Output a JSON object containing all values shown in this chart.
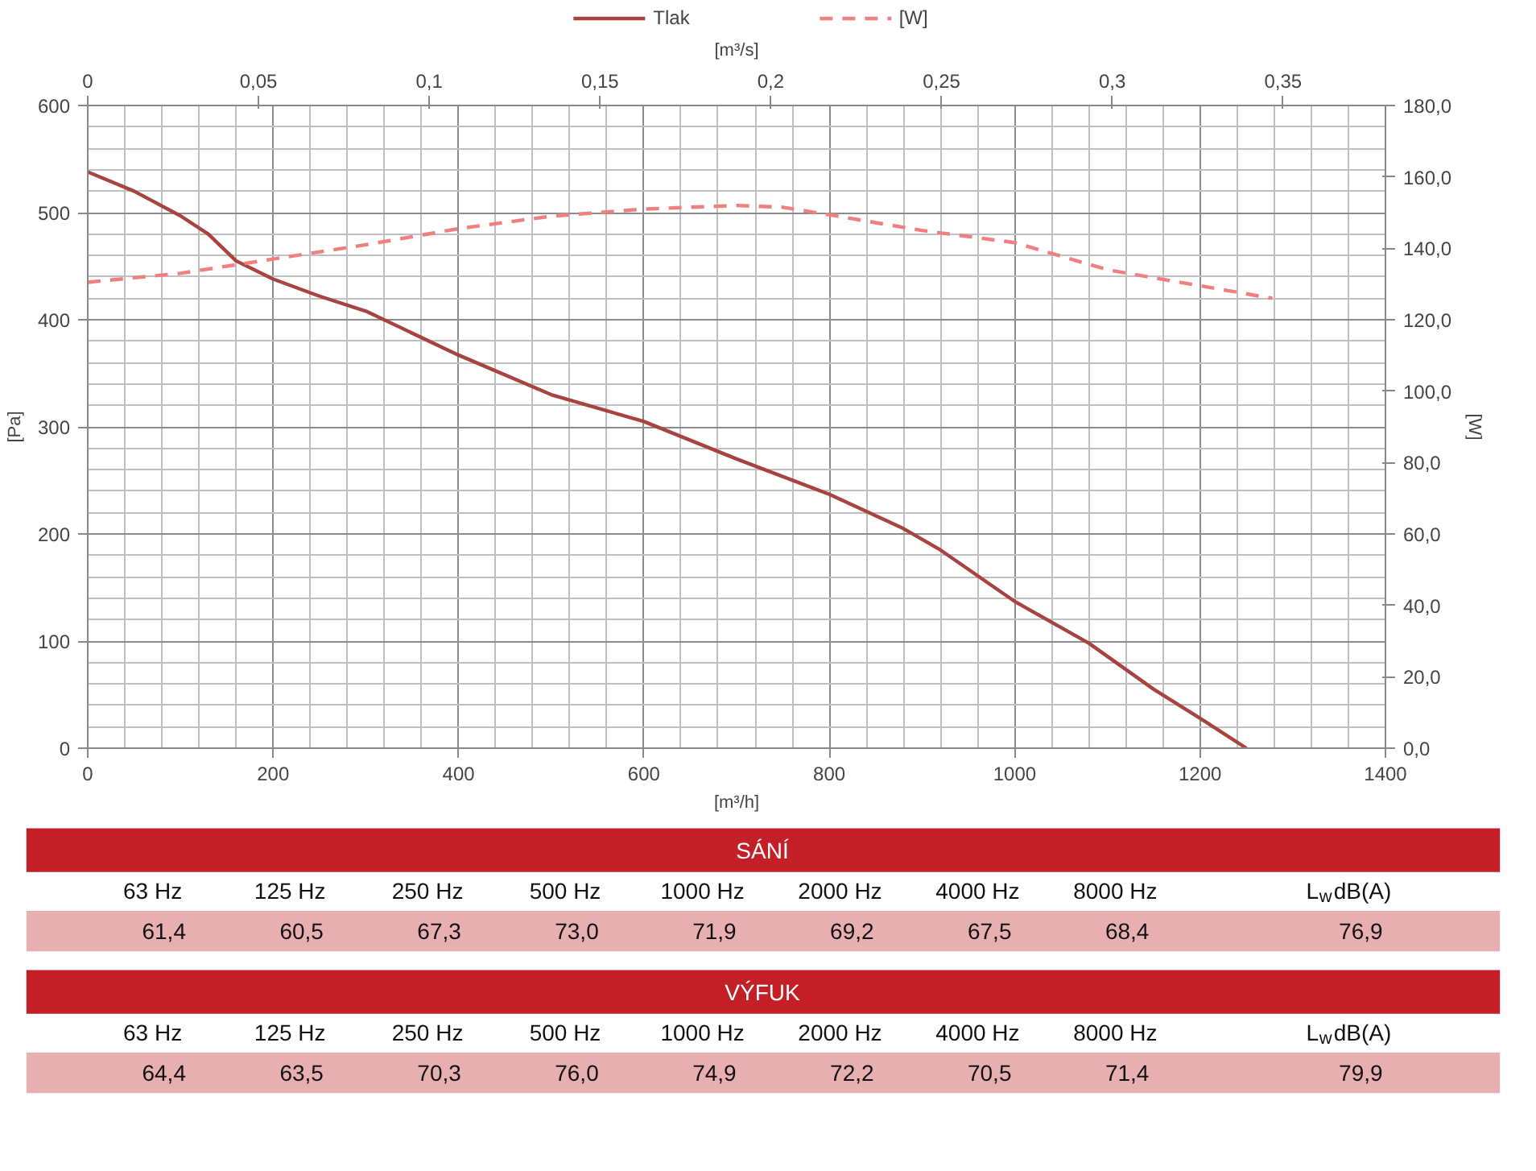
{
  "chart_data": [
    {
      "type": "line",
      "xlabel": "[m³/h]",
      "ylabel": "[Pa]",
      "y2label": "[W]",
      "x2label": "[m³/s]",
      "xlim": [
        0,
        1400
      ],
      "xticks": [
        0,
        200,
        400,
        600,
        800,
        1000,
        1200,
        1400
      ],
      "ylim": [
        0,
        600
      ],
      "yticks": [
        0,
        100,
        200,
        300,
        400,
        500,
        600
      ],
      "y2lim": [
        0,
        180
      ],
      "y2ticks": [
        {
          "value": 0,
          "label": "0,0"
        },
        {
          "value": 20,
          "label": "20,0"
        },
        {
          "value": 40,
          "label": "40,0"
        },
        {
          "value": 60,
          "label": "60,0"
        },
        {
          "value": 80,
          "label": "80,0"
        },
        {
          "value": 100,
          "label": "100,0"
        },
        {
          "value": 120,
          "label": "120,0"
        },
        {
          "value": 140,
          "label": "140,0"
        },
        {
          "value": 160,
          "label": "160,0"
        },
        {
          "value": 180,
          "label": "180,0"
        }
      ],
      "x2lim": [
        0,
        0.38
      ],
      "x2ticks": [
        0,
        {
          "value": 0.05,
          "label": "0,05"
        },
        {
          "value": 0.1,
          "label": "0,1"
        },
        {
          "value": 0.15,
          "label": "0,15"
        },
        {
          "value": 0.2,
          "label": "0,2"
        },
        {
          "value": 0.25,
          "label": "0,25"
        },
        {
          "value": 0.3,
          "label": "0,3"
        },
        {
          "value": 0.35,
          "label": "0,35"
        }
      ],
      "grid": true,
      "legend": "top",
      "series": [
        {
          "name": "Tlak",
          "color": "#a84440",
          "line_style": "solid",
          "x": [
            0,
            50,
            100,
            130,
            160,
            200,
            250,
            300,
            400,
            500,
            600,
            700,
            800,
            880,
            920,
            1000,
            1080,
            1150,
            1200,
            1250
          ],
          "values": [
            538,
            520,
            497,
            480,
            455,
            438,
            422,
            408,
            367,
            330,
            305,
            270,
            237,
            205,
            185,
            137,
            98,
            55,
            28,
            0
          ]
        },
        {
          "name": "[W]",
          "color": "#f08080",
          "line_style": "dashed",
          "axis": "y2",
          "x": [
            0,
            100,
            200,
            300,
            400,
            500,
            600,
            700,
            750,
            800,
            900,
            1000,
            1100,
            1200,
            1278
          ],
          "values": [
            130.5,
            133,
            137,
            141,
            145.5,
            149,
            151,
            152,
            151.5,
            149.4,
            145,
            141.6,
            134,
            129.5,
            126
          ]
        }
      ]
    },
    {
      "type": "other",
      "title": "SÁNÍ",
      "categories": [
        "63 Hz",
        "125 Hz",
        "250 Hz",
        "500 Hz",
        "1000 Hz",
        "2000 Hz",
        "4000 Hz",
        "8000 Hz",
        "L$_{w}$dB(A)"
      ],
      "value_labels": [
        "61,4",
        "60,5",
        "67,3",
        "73,0",
        "71,9",
        "69,2",
        "67,5",
        "68,4",
        "76,9"
      ]
    },
    {
      "type": "other",
      "title": "VÝFUK",
      "categories": [
        "63 Hz",
        "125 Hz",
        "250 Hz",
        "500 Hz",
        "1000 Hz",
        "2000 Hz",
        "4000 Hz",
        "8000 Hz",
        "L$_{w}$dB(A)"
      ],
      "value_labels": [
        "64,4",
        "63,5",
        "70,3",
        "76,0",
        "74,9",
        "72,2",
        "70,5",
        "71,4",
        "79,9"
      ]
    }
  ]
}
